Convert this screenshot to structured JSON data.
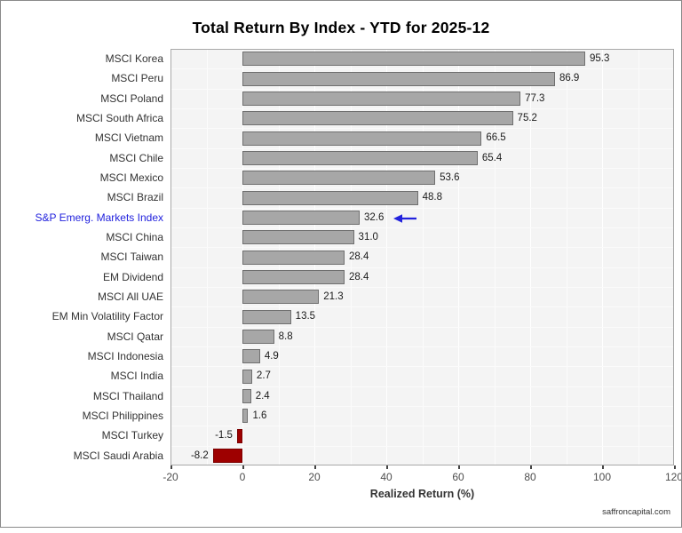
{
  "title": "Total Return By Index - YTD for 2025-12",
  "footer": {
    "watermark": "saffroncapital.com"
  },
  "colors": {
    "bar_positive": "#a7a7a7",
    "bar_positive_border": "#6f6f6f",
    "bar_negative": "#9e0000",
    "bar_negative_border": "#7a0000",
    "highlight_blue": "#2222dd",
    "panel_background": "#f4f4f4",
    "gridline": "#ffffff",
    "axis_text": "#4d4d4d",
    "label_text": "#333333"
  },
  "chart_data": {
    "type": "bar",
    "orientation": "horizontal",
    "title": "Total Return By Index - YTD for 2025-12",
    "xlabel": "Realized Return (%)",
    "ylabel": "",
    "xlim": [
      -20,
      120
    ],
    "xticks": [
      -20,
      0,
      20,
      40,
      60,
      80,
      100,
      120
    ],
    "minor_grid_step": 10,
    "legend": "none",
    "categories": [
      "MSCI Korea",
      "MSCI Peru",
      "MSCI Poland",
      "MSCI South Africa",
      "MSCI Vietnam",
      "MSCI Chile",
      "MSCI Mexico",
      "MSCI Brazil",
      "S&P Emerg. Markets Index",
      "MSCI China",
      "MSCI Taiwan",
      "EM Dividend",
      "MSCI All UAE",
      "EM Min Volatility Factor",
      "MSCI Qatar",
      "MSCI Indonesia",
      "MSCI India",
      "MSCI Thailand",
      "MSCI Philippines",
      "MSCI Turkey",
      "MSCI Saudi Arabia"
    ],
    "values": [
      95.3,
      86.9,
      77.3,
      75.2,
      66.5,
      65.4,
      53.6,
      48.8,
      32.6,
      31.0,
      28.4,
      28.4,
      21.3,
      13.5,
      8.8,
      4.9,
      2.7,
      2.4,
      1.6,
      -1.5,
      -8.2
    ],
    "highlight": {
      "index": 8,
      "category": "S&P Emerg. Markets Index",
      "value": 32.6,
      "color": "#2222dd",
      "annotation": "left-pointing blue arrow"
    }
  }
}
